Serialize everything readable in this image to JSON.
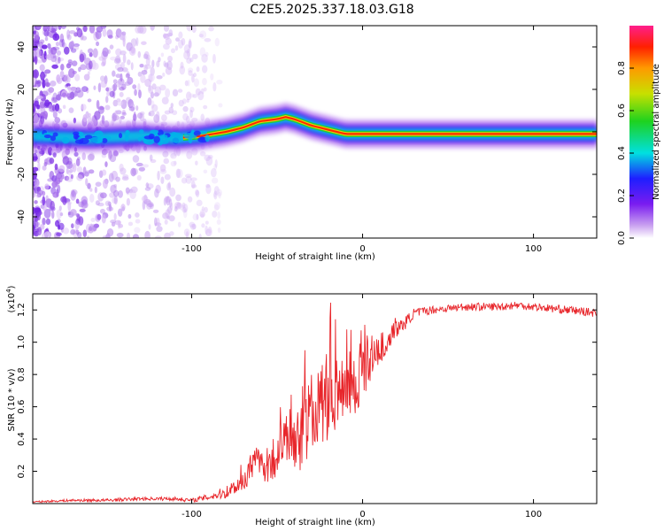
{
  "title": "C2E5.2025.337.18.03.G18",
  "chart_data": [
    {
      "type": "heatmap",
      "xlabel": "Height of straight line (km)",
      "ylabel": "Frequency (Hz)",
      "xlim": [
        -193,
        137
      ],
      "ylim": [
        -50,
        50
      ],
      "xticks": [
        -100,
        0,
        100
      ],
      "xtick_labels": [
        "-100",
        "0",
        "100"
      ],
      "yticks": [
        40,
        20,
        0,
        -20,
        -40
      ],
      "ytick_labels": [
        "40",
        "20",
        "0",
        "-20",
        "-40"
      ],
      "ridge": {
        "x": [
          -193,
          -160,
          -130,
          -110,
          -95,
          -80,
          -70,
          -60,
          -50,
          -45,
          -40,
          -30,
          -20,
          -15,
          -10,
          0,
          20,
          50,
          80,
          100,
          137
        ],
        "y": [
          -2,
          -3,
          -2,
          -3,
          -2,
          0,
          2,
          5,
          6,
          7,
          6,
          3,
          1,
          0,
          -1,
          -1,
          -1,
          -1,
          -1,
          -1,
          -1
        ]
      },
      "colorbar": {
        "label": "Normalized spectral amplitude",
        "range": [
          0,
          1
        ],
        "ticks": [
          0.0,
          0.2,
          0.4,
          0.6,
          0.8
        ],
        "tick_labels": [
          "0.0",
          "0.2",
          "0.4",
          "0.6",
          "0.8"
        ]
      }
    },
    {
      "type": "line",
      "xlabel": "Height of straight line (km)",
      "ylabel": "SNR (10 * v/v)",
      "y_multiplier_label": "(x10",
      "y_multiplier_exp": "4",
      "xlim": [
        -193,
        137
      ],
      "ylim": [
        0,
        1.3
      ],
      "xticks": [
        -100,
        0,
        100
      ],
      "xtick_labels": [
        "-100",
        "0",
        "100"
      ],
      "yticks": [
        0.2,
        0.4,
        0.6,
        0.8,
        1.0,
        1.2
      ],
      "ytick_labels": [
        "0.2",
        "0.4",
        "0.6",
        "0.8",
        "1.0",
        "1.2"
      ],
      "color": "#e8262b",
      "series": [
        {
          "name": "SNR",
          "x": [
            -193,
            -170,
            -150,
            -130,
            -110,
            -100,
            -90,
            -80,
            -70,
            -65,
            -60,
            -55,
            -50,
            -45,
            -40,
            -35,
            -30,
            -25,
            -20,
            -15,
            -10,
            -5,
            0,
            5,
            10,
            15,
            20,
            25,
            30,
            40,
            50,
            60,
            70,
            80,
            90,
            100,
            110,
            120,
            130,
            137
          ],
          "y": [
            0.01,
            0.02,
            0.02,
            0.03,
            0.03,
            0.02,
            0.04,
            0.07,
            0.14,
            0.22,
            0.28,
            0.2,
            0.3,
            0.4,
            0.35,
            0.45,
            0.55,
            0.6,
            0.65,
            0.7,
            0.75,
            0.72,
            0.8,
            0.9,
            0.95,
            1.02,
            1.08,
            1.12,
            1.18,
            1.2,
            1.21,
            1.22,
            1.22,
            1.22,
            1.23,
            1.22,
            1.21,
            1.2,
            1.19,
            1.18
          ],
          "noise": [
            0.005,
            0.008,
            0.01,
            0.01,
            0.012,
            0.012,
            0.02,
            0.04,
            0.06,
            0.1,
            0.1,
            0.1,
            0.12,
            0.16,
            0.2,
            0.22,
            0.25,
            0.26,
            0.26,
            0.24,
            0.22,
            0.2,
            0.18,
            0.14,
            0.1,
            0.07,
            0.05,
            0.04,
            0.03,
            0.025,
            0.025,
            0.025,
            0.025,
            0.025,
            0.025,
            0.025,
            0.025,
            0.025,
            0.025,
            0.025
          ]
        }
      ]
    }
  ]
}
